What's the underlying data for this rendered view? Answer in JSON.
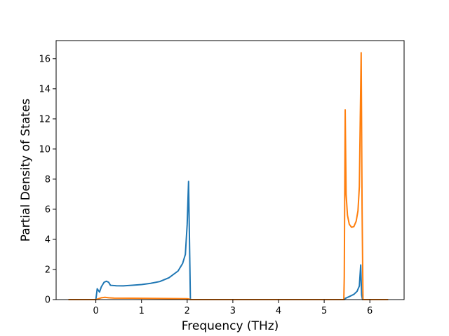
{
  "chart_data": {
    "type": "line",
    "title": "",
    "xlabel": "Frequency (THz)",
    "ylabel": "Partial Density of States",
    "xlim": [
      -0.87,
      6.75
    ],
    "ylim": [
      0,
      17.2
    ],
    "xticks": [
      0,
      1,
      2,
      3,
      4,
      5,
      6
    ],
    "yticks": [
      0,
      2,
      4,
      6,
      8,
      10,
      12,
      14,
      16
    ],
    "grid": false,
    "legend": "none",
    "series": [
      {
        "color": "#1f77b4",
        "points": [
          [
            -0.6,
            0
          ],
          [
            0.0,
            0
          ],
          [
            0.03,
            0.72
          ],
          [
            0.08,
            0.5
          ],
          [
            0.12,
            0.85
          ],
          [
            0.18,
            1.15
          ],
          [
            0.23,
            1.22
          ],
          [
            0.28,
            1.15
          ],
          [
            0.32,
            0.95
          ],
          [
            0.45,
            0.92
          ],
          [
            0.6,
            0.91
          ],
          [
            0.8,
            0.95
          ],
          [
            1.0,
            1.0
          ],
          [
            1.2,
            1.08
          ],
          [
            1.4,
            1.2
          ],
          [
            1.6,
            1.45
          ],
          [
            1.8,
            1.9
          ],
          [
            1.9,
            2.4
          ],
          [
            1.96,
            3.0
          ],
          [
            2.0,
            5.0
          ],
          [
            2.03,
            7.85
          ],
          [
            2.05,
            4.0
          ],
          [
            2.07,
            0
          ],
          [
            2.5,
            0
          ],
          [
            3.0,
            0
          ],
          [
            4.0,
            0
          ],
          [
            5.0,
            0
          ],
          [
            5.44,
            0
          ],
          [
            5.46,
            0.08
          ],
          [
            5.55,
            0.2
          ],
          [
            5.65,
            0.35
          ],
          [
            5.72,
            0.55
          ],
          [
            5.77,
            0.9
          ],
          [
            5.8,
            2.3
          ],
          [
            5.82,
            0.3
          ],
          [
            5.84,
            0
          ],
          [
            6.0,
            0
          ],
          [
            6.4,
            0
          ]
        ]
      },
      {
        "color": "#ff7f0e",
        "points": [
          [
            -0.6,
            0
          ],
          [
            0.0,
            0
          ],
          [
            0.05,
            0.05
          ],
          [
            0.12,
            0.12
          ],
          [
            0.2,
            0.15
          ],
          [
            0.28,
            0.12
          ],
          [
            0.4,
            0.1
          ],
          [
            0.8,
            0.09
          ],
          [
            1.2,
            0.08
          ],
          [
            1.6,
            0.07
          ],
          [
            2.0,
            0.06
          ],
          [
            2.05,
            0.03
          ],
          [
            2.08,
            0
          ],
          [
            3.0,
            0
          ],
          [
            4.0,
            0
          ],
          [
            5.0,
            0
          ],
          [
            5.43,
            0
          ],
          [
            5.44,
            1.5
          ],
          [
            5.46,
            12.6
          ],
          [
            5.48,
            7.0
          ],
          [
            5.51,
            5.6
          ],
          [
            5.55,
            5.0
          ],
          [
            5.6,
            4.8
          ],
          [
            5.65,
            4.85
          ],
          [
            5.7,
            5.2
          ],
          [
            5.74,
            5.9
          ],
          [
            5.77,
            7.5
          ],
          [
            5.79,
            12.0
          ],
          [
            5.81,
            16.4
          ],
          [
            5.83,
            6.0
          ],
          [
            5.85,
            0
          ],
          [
            6.0,
            0
          ],
          [
            6.4,
            0
          ]
        ]
      }
    ]
  }
}
